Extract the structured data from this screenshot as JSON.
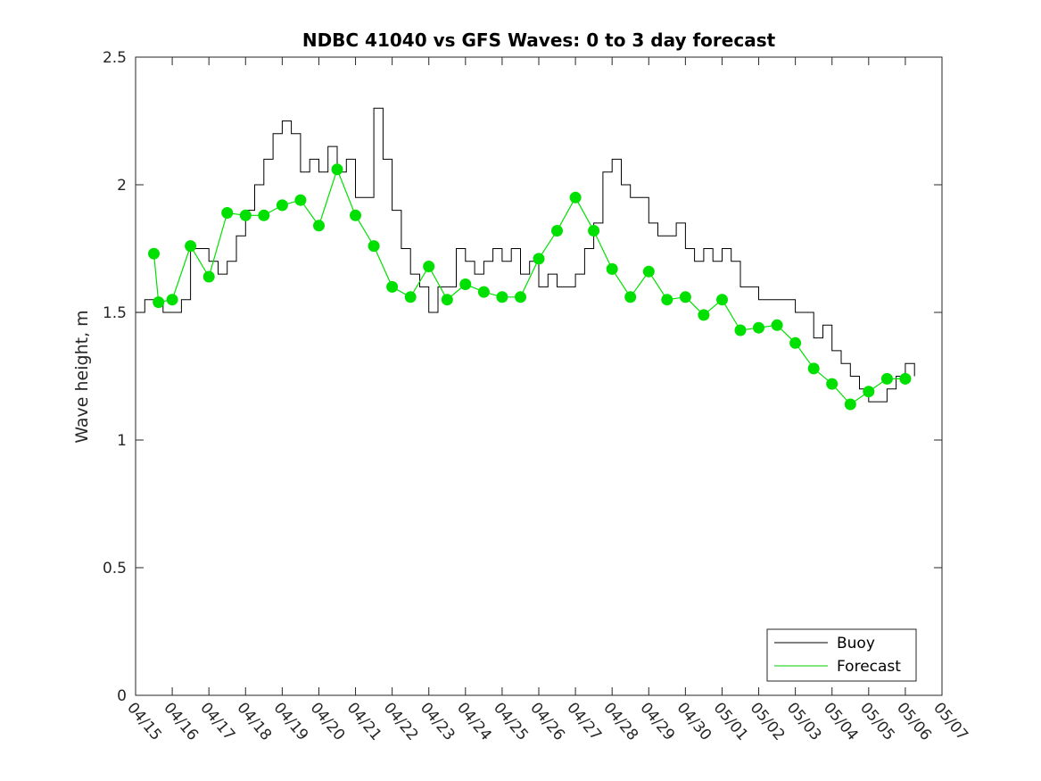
{
  "chart_data": {
    "type": "line",
    "title": "NDBC 41040 vs GFS Waves: 0 to 3 day forecast",
    "xlabel": "",
    "ylabel": "Wave height, m",
    "xlim": [
      0,
      22
    ],
    "ylim": [
      0,
      2.5
    ],
    "x_tick_labels": [
      "04/15",
      "04/16",
      "04/17",
      "04/18",
      "04/19",
      "04/20",
      "04/21",
      "04/22",
      "04/23",
      "04/24",
      "04/25",
      "04/26",
      "04/27",
      "04/28",
      "04/29",
      "04/30",
      "05/01",
      "05/02",
      "05/03",
      "05/04",
      "05/05",
      "05/06",
      "05/07"
    ],
    "y_tick_labels": [
      "0",
      "0.5",
      "1",
      "1.5",
      "2",
      "2.5"
    ],
    "y_ticks": [
      0,
      0.5,
      1,
      1.5,
      2,
      2.5
    ],
    "grid": false,
    "legend_position": "bottom-right",
    "legend": [
      {
        "label": "Buoy",
        "color": "#000000"
      },
      {
        "label": "Forecast",
        "color": "#00cc00"
      }
    ],
    "series": [
      {
        "name": "Buoy",
        "color": "#000000",
        "x": [
          0,
          0.25,
          0.5,
          0.75,
          1,
          1.25,
          1.5,
          1.75,
          2,
          2.25,
          2.5,
          2.75,
          3,
          3.25,
          3.5,
          3.75,
          4,
          4.25,
          4.5,
          4.75,
          5,
          5.25,
          5.5,
          5.75,
          6,
          6.25,
          6.5,
          6.75,
          7,
          7.25,
          7.5,
          7.75,
          8,
          8.25,
          8.5,
          8.75,
          9,
          9.25,
          9.5,
          9.75,
          10,
          10.25,
          10.5,
          10.75,
          11,
          11.25,
          11.5,
          11.75,
          12,
          12.25,
          12.5,
          12.75,
          13,
          13.25,
          13.5,
          13.75,
          14,
          14.25,
          14.5,
          14.75,
          15,
          15.25,
          15.5,
          15.75,
          16,
          16.25,
          16.5,
          16.75,
          17,
          17.25,
          17.5,
          17.75,
          18,
          18.25,
          18.5,
          18.75,
          19,
          19.25,
          19.5,
          19.75,
          20,
          20.25,
          20.5,
          20.75,
          21,
          21.25
        ],
        "y": [
          1.5,
          1.55,
          1.55,
          1.5,
          1.5,
          1.55,
          1.75,
          1.75,
          1.7,
          1.65,
          1.7,
          1.8,
          1.9,
          2.0,
          2.1,
          2.2,
          2.25,
          2.2,
          2.05,
          2.1,
          2.05,
          2.15,
          2.05,
          2.1,
          1.95,
          1.95,
          2.3,
          2.1,
          1.9,
          1.75,
          1.65,
          1.6,
          1.5,
          1.6,
          1.6,
          1.75,
          1.7,
          1.65,
          1.7,
          1.75,
          1.7,
          1.75,
          1.65,
          1.7,
          1.6,
          1.65,
          1.6,
          1.6,
          1.65,
          1.75,
          1.85,
          2.05,
          2.1,
          2.0,
          1.95,
          1.95,
          1.85,
          1.8,
          1.8,
          1.85,
          1.75,
          1.7,
          1.75,
          1.7,
          1.75,
          1.7,
          1.6,
          1.6,
          1.55,
          1.55,
          1.55,
          1.55,
          1.5,
          1.5,
          1.4,
          1.45,
          1.35,
          1.3,
          1.25,
          1.2,
          1.15,
          1.15,
          1.2,
          1.25,
          1.3,
          1.25
        ]
      },
      {
        "name": "Forecast",
        "color": "#00e000",
        "x": [
          0.5,
          0.625,
          1,
          1.5,
          2,
          2.5,
          3,
          3.5,
          4,
          4.5,
          5,
          5.5,
          6,
          6.5,
          7,
          7.5,
          8,
          8.5,
          9,
          9.5,
          10,
          10.5,
          11,
          11.5,
          12,
          12.5,
          13,
          13.5,
          14,
          14.5,
          15,
          15.5,
          16,
          16.5,
          17,
          17.5,
          18,
          18.5,
          19,
          19.5,
          20,
          20.5,
          21
        ],
        "y": [
          1.73,
          1.54,
          1.55,
          1.76,
          1.64,
          1.89,
          1.88,
          1.88,
          1.92,
          1.94,
          1.84,
          2.06,
          1.88,
          1.76,
          1.6,
          1.56,
          1.68,
          1.55,
          1.61,
          1.58,
          1.56,
          1.56,
          1.71,
          1.82,
          1.95,
          1.82,
          1.67,
          1.56,
          1.66,
          1.55,
          1.56,
          1.49,
          1.55,
          1.43,
          1.44,
          1.45,
          1.38,
          1.28,
          1.22,
          1.14,
          1.19,
          1.24,
          1.24
        ]
      }
    ]
  }
}
